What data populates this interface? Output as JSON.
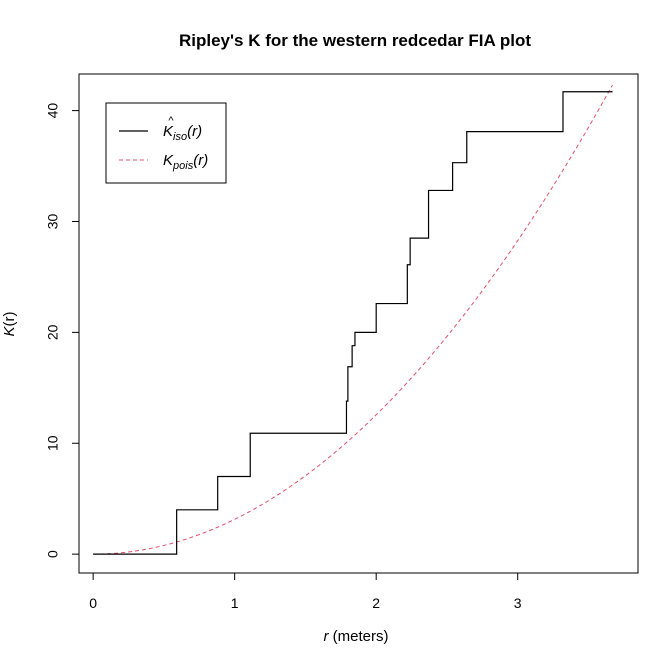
{
  "chart_data": {
    "type": "line",
    "title": "Ripley's K for the western redcedar FIA plot",
    "xlabel": {
      "var": "r",
      "unit": " (meters)"
    },
    "ylabel": {
      "main": "K",
      "arg": "(r)"
    },
    "xlim": [
      -0.1,
      3.85
    ],
    "ylim": [
      -1.7,
      43.3
    ],
    "x_ticks": [
      0,
      1,
      2,
      3
    ],
    "y_ticks": [
      0,
      10,
      20,
      30,
      40
    ],
    "legend": {
      "position": "top-left",
      "entries": [
        {
          "main": "K",
          "hat": "^",
          "sub": "iso",
          "arg": "(r)"
        },
        {
          "main": "K",
          "sub": "pois",
          "arg": "(r)"
        }
      ]
    },
    "colors": {
      "iso": "#000000",
      "pois": "#DF536B",
      "axes": "#000000"
    },
    "series": [
      {
        "key": "iso",
        "style": "step",
        "points": [
          [
            0,
            0
          ],
          [
            0.59,
            0
          ],
          [
            0.59,
            4.0
          ],
          [
            0.88,
            4.0
          ],
          [
            0.88,
            7.0
          ],
          [
            1.11,
            7.0
          ],
          [
            1.11,
            10.9
          ],
          [
            1.79,
            10.9
          ],
          [
            1.79,
            13.8
          ],
          [
            1.8,
            13.8
          ],
          [
            1.8,
            16.9
          ],
          [
            1.83,
            16.9
          ],
          [
            1.83,
            18.8
          ],
          [
            1.85,
            18.8
          ],
          [
            1.85,
            20.0
          ],
          [
            2.0,
            20.0
          ],
          [
            2.0,
            22.6
          ],
          [
            2.22,
            22.6
          ],
          [
            2.22,
            26.1
          ],
          [
            2.24,
            26.1
          ],
          [
            2.24,
            28.5
          ],
          [
            2.37,
            28.5
          ],
          [
            2.37,
            32.8
          ],
          [
            2.54,
            32.8
          ],
          [
            2.54,
            35.3
          ],
          [
            2.64,
            35.3
          ],
          [
            2.64,
            38.1
          ],
          [
            3.32,
            38.1
          ],
          [
            3.32,
            41.7
          ],
          [
            3.67,
            41.7
          ]
        ]
      },
      {
        "key": "pois",
        "style": "dashed",
        "function": "pi*r^2",
        "x_range": [
          0,
          3.67
        ]
      }
    ]
  }
}
